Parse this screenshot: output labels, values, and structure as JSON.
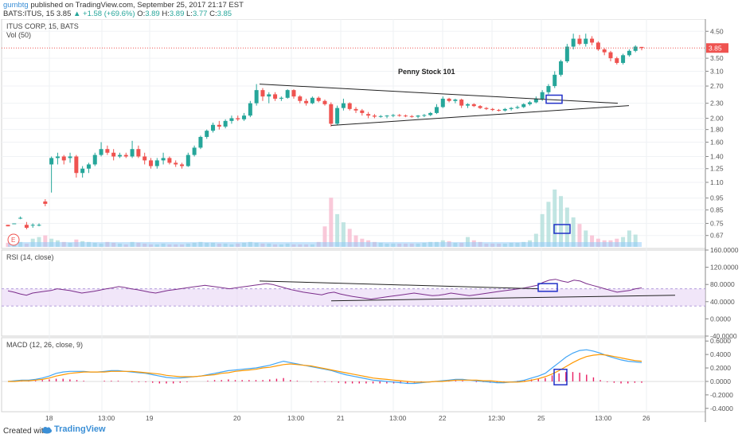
{
  "header": {
    "author": "gumbtg",
    "published": "published on TradingView.com, September 25, 2017 21:17 EST",
    "symbol_line": "BATS:ITUS, 15",
    "last": "3.85",
    "change": "▲ +1.58 (+69.6%)",
    "ohlc_o_label": "O:",
    "ohlc_o": "3.89",
    "ohlc_h_label": "H:",
    "ohlc_h": "3.89",
    "ohlc_l_label": "L:",
    "ohlc_l": "3.77",
    "ohlc_c_label": "C:",
    "ohlc_c": "3.85"
  },
  "footer": {
    "made_with": "Created with",
    "brand": "TradingView"
  },
  "colors": {
    "up": "#26a69a",
    "down": "#ef5350",
    "rsi": "#7b2d8b",
    "macd": "#42a5f5",
    "signal": "#ff9800",
    "hist": "#e91e63",
    "trend": "#000000",
    "box": "#2130c8",
    "price_line": "#ef5350"
  },
  "chart_data": [
    {
      "type": "candlestick",
      "title": "ITUS CORP, 15, BATS",
      "volume_label": "Vol (50)",
      "annotation": "Penny Stock 101",
      "y_scale": "log",
      "y_ticks": [
        "4.50",
        "3.85",
        "3.50",
        "3.10",
        "2.70",
        "2.30",
        "2.00",
        "1.80",
        "1.60",
        "1.40",
        "1.25",
        "1.10",
        "0.95",
        "0.85",
        "0.75",
        "0.67"
      ],
      "last_price_label": "3.85",
      "x_ticks": [
        "18",
        "13:00",
        "19",
        "20",
        "13:00",
        "21",
        "13:00",
        "22",
        "12:30",
        "25",
        "13:00",
        "26"
      ],
      "event_marker": "E",
      "candles": [
        [
          0.74,
          0.74,
          0.73,
          0.73
        ],
        [
          0.75,
          0.75,
          0.75,
          0.75
        ],
        [
          0.79,
          0.8,
          0.78,
          0.79
        ],
        [
          0.74,
          0.76,
          0.71,
          0.72
        ],
        [
          0.74,
          0.75,
          0.72,
          0.74
        ],
        [
          0.74,
          0.75,
          0.73,
          0.74
        ],
        [
          0.92,
          0.94,
          0.88,
          0.9
        ],
        [
          1.3,
          1.4,
          1.0,
          1.38
        ],
        [
          1.38,
          1.45,
          1.3,
          1.4
        ],
        [
          1.4,
          1.42,
          1.3,
          1.35
        ],
        [
          1.38,
          1.45,
          1.32,
          1.4
        ],
        [
          1.4,
          1.42,
          1.15,
          1.2
        ],
        [
          1.2,
          1.28,
          1.15,
          1.25
        ],
        [
          1.25,
          1.32,
          1.2,
          1.3
        ],
        [
          1.3,
          1.45,
          1.28,
          1.42
        ],
        [
          1.42,
          1.6,
          1.4,
          1.5
        ],
        [
          1.5,
          1.55,
          1.42,
          1.45
        ],
        [
          1.45,
          1.5,
          1.35,
          1.4
        ],
        [
          1.4,
          1.45,
          1.38,
          1.42
        ],
        [
          1.42,
          1.45,
          1.38,
          1.4
        ],
        [
          1.4,
          1.62,
          1.38,
          1.5
        ],
        [
          1.5,
          1.55,
          1.38,
          1.4
        ],
        [
          1.4,
          1.45,
          1.3,
          1.35
        ],
        [
          1.35,
          1.38,
          1.25,
          1.28
        ],
        [
          1.28,
          1.38,
          1.25,
          1.35
        ],
        [
          1.35,
          1.45,
          1.3,
          1.38
        ],
        [
          1.38,
          1.4,
          1.3,
          1.32
        ],
        [
          1.32,
          1.35,
          1.27,
          1.3
        ],
        [
          1.3,
          1.32,
          1.25,
          1.28
        ],
        [
          1.28,
          1.45,
          1.27,
          1.42
        ],
        [
          1.42,
          1.55,
          1.4,
          1.52
        ],
        [
          1.52,
          1.7,
          1.5,
          1.68
        ],
        [
          1.68,
          1.8,
          1.65,
          1.78
        ],
        [
          1.78,
          1.92,
          1.75,
          1.88
        ],
        [
          1.88,
          1.95,
          1.8,
          1.85
        ],
        [
          1.85,
          1.98,
          1.82,
          1.95
        ],
        [
          1.95,
          2.05,
          1.9,
          2.0
        ],
        [
          2.0,
          2.05,
          1.95,
          1.98
        ],
        [
          1.98,
          2.1,
          1.95,
          2.05
        ],
        [
          2.05,
          2.35,
          2.02,
          2.3
        ],
        [
          2.3,
          2.75,
          2.25,
          2.6
        ],
        [
          2.6,
          2.65,
          2.35,
          2.45
        ],
        [
          2.45,
          2.55,
          2.3,
          2.5
        ],
        [
          2.5,
          2.55,
          2.35,
          2.4
        ],
        [
          2.4,
          2.45,
          2.35,
          2.42
        ],
        [
          2.42,
          2.62,
          2.4,
          2.6
        ],
        [
          2.6,
          2.62,
          2.4,
          2.45
        ],
        [
          2.45,
          2.48,
          2.3,
          2.35
        ],
        [
          2.35,
          2.4,
          2.25,
          2.3
        ],
        [
          2.3,
          2.45,
          2.28,
          2.42
        ],
        [
          2.42,
          2.45,
          2.32,
          2.35
        ],
        [
          2.35,
          2.38,
          2.25,
          2.28
        ],
        [
          2.28,
          2.32,
          1.85,
          1.9
        ],
        [
          1.9,
          2.25,
          1.88,
          2.2
        ],
        [
          2.2,
          2.4,
          2.15,
          2.3
        ],
        [
          2.3,
          2.32,
          2.15,
          2.18
        ],
        [
          2.18,
          2.22,
          2.1,
          2.15
        ],
        [
          2.15,
          2.18,
          2.05,
          2.1
        ],
        [
          2.08,
          2.12,
          2.0,
          2.05
        ],
        [
          2.05,
          2.08,
          2.0,
          2.03
        ],
        [
          2.03,
          2.06,
          2.01,
          2.04
        ],
        [
          2.04,
          2.06,
          2.0,
          2.05
        ],
        [
          2.05,
          2.08,
          2.02,
          2.06
        ],
        [
          2.06,
          2.08,
          2.03,
          2.05
        ],
        [
          2.05,
          2.07,
          2.02,
          2.04
        ],
        [
          2.04,
          2.06,
          2.01,
          2.03
        ],
        [
          2.03,
          2.06,
          2.0,
          2.05
        ],
        [
          2.05,
          2.08,
          2.02,
          2.06
        ],
        [
          2.06,
          2.12,
          2.04,
          2.1
        ],
        [
          2.1,
          2.28,
          2.08,
          2.22
        ],
        [
          2.22,
          2.45,
          2.2,
          2.4
        ],
        [
          2.4,
          2.42,
          2.32,
          2.35
        ],
        [
          2.35,
          2.4,
          2.3,
          2.38
        ],
        [
          2.38,
          2.4,
          2.2,
          2.25
        ],
        [
          2.25,
          2.3,
          2.2,
          2.28
        ],
        [
          2.28,
          2.3,
          2.22,
          2.24
        ],
        [
          2.24,
          2.26,
          2.18,
          2.2
        ],
        [
          2.2,
          2.22,
          2.16,
          2.18
        ],
        [
          2.18,
          2.2,
          2.14,
          2.16
        ],
        [
          2.16,
          2.18,
          2.13,
          2.15
        ],
        [
          2.15,
          2.2,
          2.13,
          2.18
        ],
        [
          2.18,
          2.22,
          2.15,
          2.2
        ],
        [
          2.2,
          2.25,
          2.18,
          2.22
        ],
        [
          2.22,
          2.3,
          2.2,
          2.28
        ],
        [
          2.28,
          2.35,
          2.25,
          2.32
        ],
        [
          2.32,
          2.45,
          2.3,
          2.4
        ],
        [
          2.4,
          2.6,
          2.35,
          2.55
        ],
        [
          2.55,
          2.75,
          2.5,
          2.7
        ],
        [
          2.7,
          3.1,
          2.65,
          3.0
        ],
        [
          3.0,
          3.45,
          2.95,
          3.4
        ],
        [
          3.4,
          4.0,
          3.35,
          3.9
        ],
        [
          3.9,
          4.4,
          3.8,
          4.2
        ],
        [
          4.2,
          4.35,
          3.95,
          4.0
        ],
        [
          4.0,
          4.4,
          3.9,
          4.2
        ],
        [
          4.2,
          4.3,
          3.95,
          4.05
        ],
        [
          4.05,
          4.1,
          3.75,
          3.8
        ],
        [
          3.8,
          3.85,
          3.6,
          3.7
        ],
        [
          3.7,
          3.75,
          3.4,
          3.5
        ],
        [
          3.5,
          3.55,
          3.3,
          3.35
        ],
        [
          3.35,
          3.65,
          3.3,
          3.6
        ],
        [
          3.6,
          3.8,
          3.55,
          3.75
        ],
        [
          3.75,
          3.95,
          3.7,
          3.9
        ],
        [
          3.89,
          3.89,
          3.77,
          3.85
        ]
      ],
      "volume": [
        5,
        8,
        6,
        4,
        10,
        12,
        14,
        10,
        8,
        6,
        5,
        9,
        7,
        6,
        5,
        4,
        6,
        5,
        4,
        3,
        6,
        5,
        4,
        3,
        3,
        4,
        3,
        3,
        3,
        4,
        5,
        6,
        5,
        5,
        4,
        4,
        3,
        4,
        5,
        6,
        5,
        4,
        4,
        3,
        3,
        4,
        3,
        3,
        3,
        3,
        6,
        25,
        60,
        40,
        30,
        22,
        14,
        10,
        8,
        6,
        5,
        4,
        4,
        4,
        4,
        4,
        4,
        5,
        6,
        6,
        8,
        7,
        5,
        5,
        12,
        8,
        6,
        4,
        4,
        4,
        4,
        5,
        5,
        6,
        8,
        16,
        40,
        55,
        70,
        62,
        48,
        36,
        28,
        20,
        14,
        10,
        8,
        8,
        10,
        12,
        20,
        15
      ],
      "trendlines": [
        {
          "from": [
            "2017-09-20 10:00",
            2.75
          ],
          "to": [
            "2017-09-25 15:00",
            2.3
          ]
        },
        {
          "from": [
            "2017-09-21 09:30",
            1.87
          ],
          "to": [
            "2017-09-25 15:00",
            2.25
          ]
        }
      ]
    },
    {
      "type": "line",
      "title": "RSI (14, close)",
      "y_ticks": [
        "160.0000",
        "120.0000",
        "80.0000",
        "40.0000",
        "0.0000",
        "-40.0000"
      ],
      "ylim": [
        -40,
        160
      ],
      "band": [
        30,
        70
      ],
      "values": [
        65,
        62,
        58,
        55,
        60,
        62,
        64,
        66,
        70,
        68,
        66,
        63,
        60,
        62,
        64,
        67,
        70,
        72,
        75,
        73,
        70,
        68,
        65,
        62,
        60,
        63,
        66,
        68,
        70,
        72,
        74,
        76,
        78,
        76,
        74,
        72,
        70,
        72,
        74,
        76,
        78,
        80,
        82,
        80,
        76,
        72,
        68,
        65,
        62,
        60,
        58,
        56,
        60,
        62,
        58,
        55,
        52,
        50,
        48,
        46,
        48,
        50,
        52,
        54,
        56,
        58,
        60,
        58,
        56,
        54,
        55,
        57,
        60,
        58,
        56,
        54,
        56,
        58,
        60,
        62,
        64,
        66,
        68,
        70,
        72,
        75,
        78,
        85,
        90,
        92,
        88,
        85,
        90,
        88,
        82,
        78,
        74,
        70,
        66,
        62,
        64,
        66,
        70,
        72
      ]
    },
    {
      "type": "line",
      "title": "MACD (12, 26, close, 9)",
      "y_ticks": [
        "0.6000",
        "0.4000",
        "0.2000",
        "0.0000",
        "-0.2000",
        "-0.4000"
      ],
      "ylim": [
        -0.45,
        0.65
      ],
      "series": [
        {
          "values": [
            0,
            0.01,
            0.02,
            0.02,
            0.03,
            0.05,
            0.08,
            0.12,
            0.14,
            0.15,
            0.15,
            0.15,
            0.14,
            0.14,
            0.15,
            0.16,
            0.16,
            0.15,
            0.14,
            0.13,
            0.12,
            0.1,
            0.08,
            0.06,
            0.05,
            0.05,
            0.06,
            0.07,
            0.08,
            0.1,
            0.12,
            0.14,
            0.16,
            0.17,
            0.18,
            0.19,
            0.2,
            0.22,
            0.24,
            0.27,
            0.3,
            0.28,
            0.26,
            0.24,
            0.22,
            0.2,
            0.18,
            0.16,
            0.13,
            0.1,
            0.08,
            0.06,
            0.04,
            0.02,
            0.01,
            0.0,
            -0.01,
            -0.02,
            -0.03,
            -0.03,
            -0.02,
            -0.01,
            0.0,
            0.01,
            0.02,
            0.03,
            0.03,
            0.02,
            0.01,
            0.0,
            -0.01,
            -0.02,
            -0.02,
            -0.01,
            0.0,
            0.02,
            0.05,
            0.08,
            0.12,
            0.2,
            0.28,
            0.36,
            0.42,
            0.46,
            0.47,
            0.45,
            0.42,
            0.38,
            0.35,
            0.32,
            0.3,
            0.29,
            0.28
          ]
        },
        {
          "values": [
            0,
            0.0,
            0.01,
            0.01,
            0.02,
            0.03,
            0.05,
            0.08,
            0.1,
            0.12,
            0.13,
            0.14,
            0.14,
            0.14,
            0.14,
            0.15,
            0.15,
            0.15,
            0.15,
            0.14,
            0.13,
            0.12,
            0.11,
            0.09,
            0.08,
            0.07,
            0.07,
            0.07,
            0.08,
            0.09,
            0.1,
            0.12,
            0.13,
            0.15,
            0.16,
            0.17,
            0.18,
            0.2,
            0.21,
            0.23,
            0.25,
            0.26,
            0.25,
            0.24,
            0.23,
            0.21,
            0.19,
            0.17,
            0.15,
            0.13,
            0.11,
            0.09,
            0.07,
            0.05,
            0.04,
            0.03,
            0.02,
            0.01,
            0.0,
            -0.01,
            -0.01,
            -0.01,
            0.0,
            0.0,
            0.01,
            0.02,
            0.02,
            0.02,
            0.02,
            0.01,
            0.01,
            0.0,
            -0.01,
            -0.01,
            -0.01,
            0.0,
            0.02,
            0.04,
            0.07,
            0.11,
            0.16,
            0.22,
            0.28,
            0.33,
            0.37,
            0.39,
            0.4,
            0.39,
            0.37,
            0.35,
            0.33,
            0.31,
            0.3
          ]
        }
      ],
      "histogram": [
        0,
        0.01,
        0.01,
        0.01,
        0.01,
        0.02,
        0.03,
        0.04,
        0.04,
        0.03,
        0.02,
        0.01,
        0.0,
        0.0,
        0.01,
        0.01,
        0.01,
        0.0,
        -0.01,
        -0.01,
        -0.01,
        -0.02,
        -0.03,
        -0.03,
        -0.03,
        -0.02,
        -0.01,
        0.0,
        0.0,
        0.01,
        0.02,
        0.02,
        0.03,
        0.02,
        0.02,
        0.02,
        0.02,
        0.02,
        0.03,
        0.04,
        0.05,
        0.02,
        0.01,
        0.0,
        -0.01,
        -0.01,
        -0.01,
        -0.01,
        -0.02,
        -0.03,
        -0.03,
        -0.03,
        -0.03,
        -0.03,
        -0.03,
        -0.03,
        -0.03,
        -0.03,
        -0.03,
        -0.02,
        -0.01,
        0.0,
        0.0,
        0.01,
        0.01,
        0.01,
        0.01,
        0.0,
        -0.01,
        -0.01,
        -0.02,
        -0.02,
        -0.01,
        0.0,
        0.01,
        0.02,
        0.03,
        0.04,
        0.05,
        0.09,
        0.12,
        0.14,
        0.14,
        0.13,
        0.1,
        0.06,
        0.02,
        -0.01,
        -0.02,
        -0.03,
        -0.03,
        -0.02,
        -0.02
      ]
    }
  ]
}
